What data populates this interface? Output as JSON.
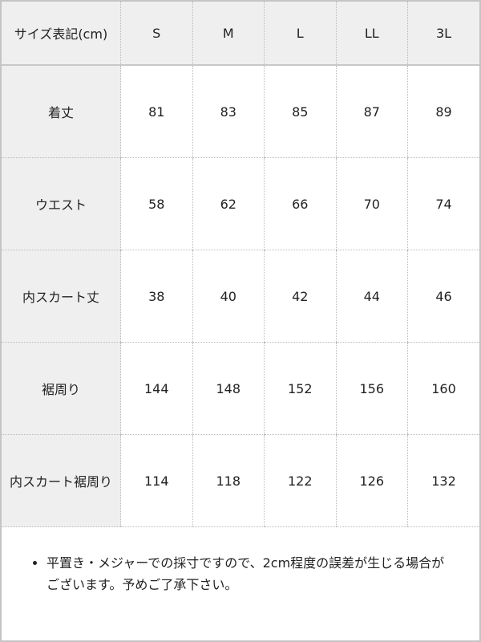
{
  "table": {
    "header": [
      "サイズ表記(cm)",
      "S",
      "M",
      "L",
      "LL",
      "3L"
    ],
    "rows": [
      [
        "着丈",
        "81",
        "83",
        "85",
        "87",
        "89"
      ],
      [
        "ウエスト",
        "58",
        "62",
        "66",
        "70",
        "74"
      ],
      [
        "内スカート丈",
        "38",
        "40",
        "42",
        "44",
        "46"
      ],
      [
        "裾周り",
        "144",
        "148",
        "152",
        "156",
        "160"
      ],
      [
        "内スカート裾周り",
        "114",
        "118",
        "122",
        "126",
        "132"
      ]
    ]
  },
  "notes": [
    "平置き・メジャーでの採寸ですので、2cm程度の誤差が生じる場合がございます。予めご了承下さい。"
  ]
}
